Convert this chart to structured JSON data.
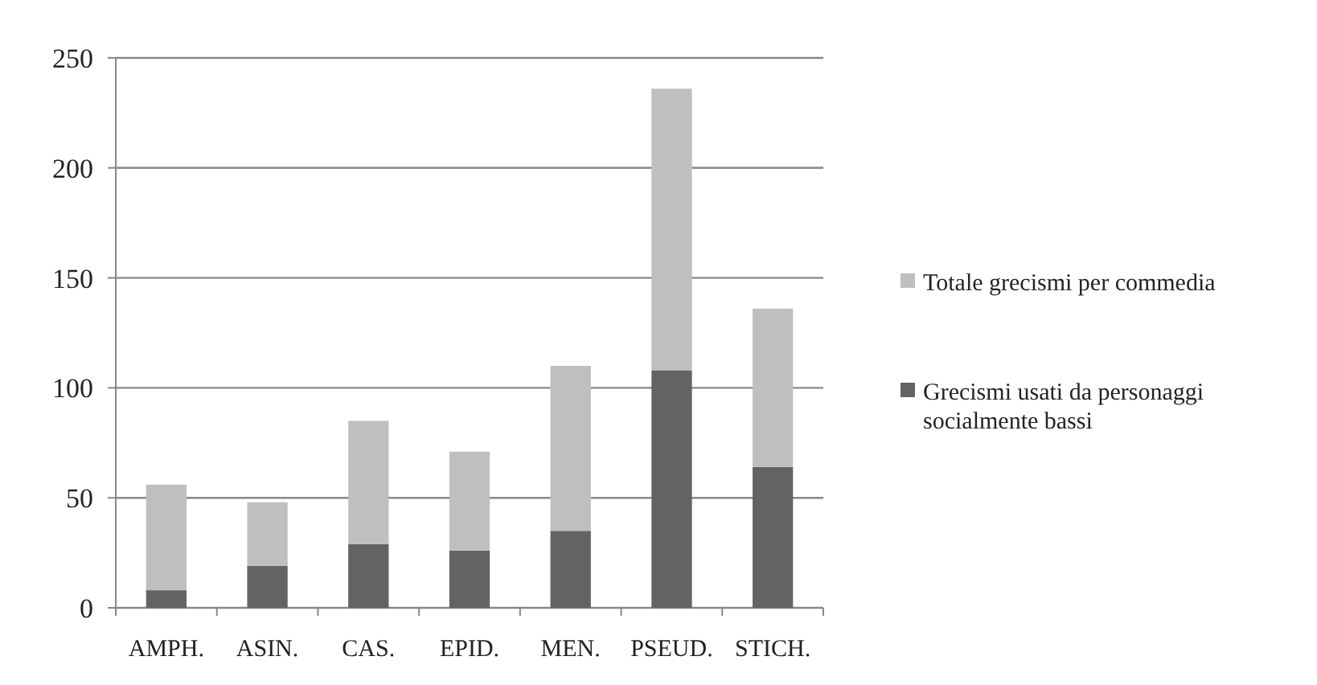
{
  "chart_data": {
    "type": "bar",
    "stacked": true,
    "categories": [
      "AMPH.",
      "ASIN.",
      "CAS.",
      "EPID.",
      "MEN.",
      "PSEUD.",
      "STICH."
    ],
    "series": [
      {
        "name": "Grecismi usati da personaggi socialmente bassi",
        "color": "#636363",
        "values": [
          8,
          19,
          29,
          26,
          35,
          108,
          64
        ]
      },
      {
        "name": "Totale grecismi per commedia",
        "color": "#bfbfbf",
        "values": [
          48,
          29,
          56,
          45,
          75,
          128,
          72
        ]
      }
    ],
    "ylim": [
      0,
      250
    ],
    "yticks": [
      0,
      50,
      100,
      150,
      200,
      250
    ],
    "grid": "y",
    "legend": "right"
  }
}
